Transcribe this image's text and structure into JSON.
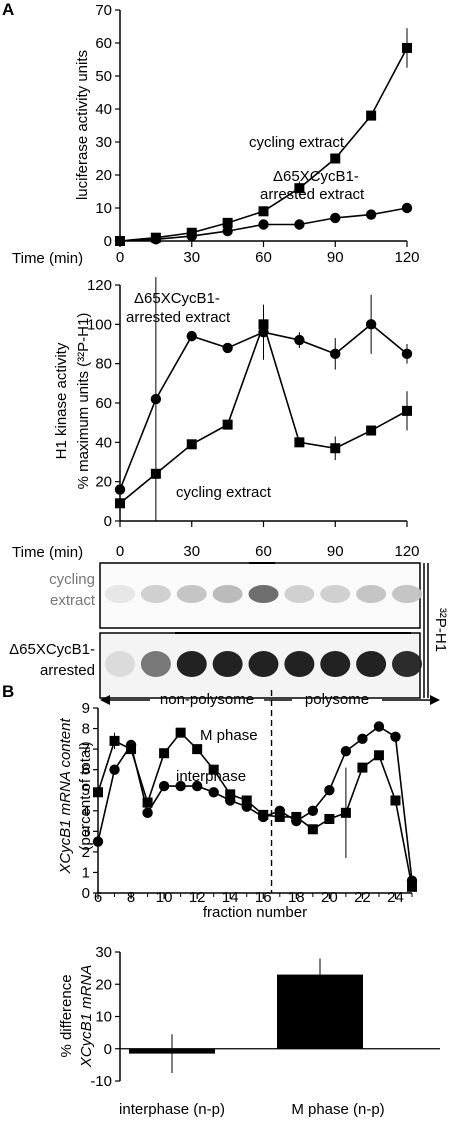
{
  "panels": {
    "A": "A",
    "B": "B"
  },
  "chart_data": [
    {
      "id": "luciferase",
      "type": "line",
      "ylabel": "luciferase activity units",
      "xlabel": "Time (min)",
      "xlim": [
        0,
        120
      ],
      "ylim": [
        0,
        70
      ],
      "xticks": [
        0,
        30,
        60,
        90,
        120
      ],
      "yticks": [
        0,
        10,
        20,
        30,
        40,
        50,
        60,
        70
      ],
      "series": [
        {
          "name": "cycling extract",
          "marker": "square",
          "x": [
            0,
            15,
            30,
            45,
            60,
            75,
            90,
            105,
            120
          ],
          "y": [
            0,
            1,
            2.5,
            5.5,
            9,
            16,
            25,
            38,
            58.5
          ],
          "err": [
            0,
            0,
            0,
            0,
            0,
            2,
            0,
            0,
            6
          ]
        },
        {
          "name": "Δ65XCycB1-\narrested extract",
          "marker": "circle",
          "x": [
            0,
            15,
            30,
            45,
            60,
            75,
            90,
            105,
            120
          ],
          "y": [
            0,
            0.5,
            1.5,
            3,
            5,
            5,
            7,
            8,
            10
          ],
          "err": [
            0,
            0,
            0,
            0,
            0,
            0,
            0,
            0,
            0
          ]
        }
      ],
      "annotations": [
        "cycling extract",
        "Δ65XCycB1-",
        "arrested extract"
      ]
    },
    {
      "id": "h1kinase",
      "type": "line",
      "ylabel_1": "H1 kinase activity",
      "ylabel_2": "% maximum units (³²P-H1)",
      "xlabel": "Time (min)",
      "xlim": [
        0,
        120
      ],
      "ylim": [
        0,
        120
      ],
      "xticks": [
        0,
        30,
        60,
        90,
        120
      ],
      "yticks": [
        0,
        20,
        40,
        60,
        80,
        100,
        120
      ],
      "series": [
        {
          "name": "Δ65XCycB1-arrested extract",
          "marker": "circle",
          "x": [
            0,
            15,
            30,
            45,
            60,
            75,
            90,
            105,
            120
          ],
          "y": [
            16,
            62,
            94,
            88,
            96,
            92,
            85,
            100,
            85
          ],
          "err": [
            0,
            62,
            0,
            0,
            14,
            4,
            8,
            15,
            5
          ]
        },
        {
          "name": "cycling extract",
          "marker": "square",
          "x": [
            0,
            15,
            30,
            45,
            60,
            75,
            90,
            105,
            120
          ],
          "y": [
            9,
            24,
            39,
            49,
            100,
            40,
            37,
            46,
            56
          ],
          "err": [
            0,
            0,
            0,
            0,
            0,
            0,
            6,
            0,
            10
          ]
        }
      ],
      "annotations": [
        "Δ65XCycB1-",
        "arrested extract",
        "cycling extract"
      ]
    },
    {
      "id": "polysome",
      "type": "line",
      "ylabel_1": "XCycB1 mRNA content",
      "ylabel_2": "(percent of total)",
      "xlabel": "fraction number",
      "xlim": [
        6,
        25
      ],
      "ylim": [
        0,
        9
      ],
      "xticks": [
        6,
        8,
        10,
        12,
        14,
        16,
        18,
        20,
        22,
        24
      ],
      "yticks": [
        0,
        1,
        2,
        3,
        4,
        5,
        6,
        7,
        8,
        9
      ],
      "divider_x": 16.5,
      "regions": [
        "non-polysome",
        "polysome"
      ],
      "series": [
        {
          "name": "M phase",
          "marker": "square",
          "x": [
            6,
            7,
            8,
            9,
            10,
            11,
            12,
            13,
            14,
            15,
            16,
            17,
            18,
            19,
            20,
            21,
            22,
            23,
            24,
            25
          ],
          "y": [
            4.9,
            7.4,
            7.0,
            4.4,
            6.8,
            7.8,
            7.0,
            6.0,
            4.8,
            4.5,
            3.8,
            3.7,
            3.7,
            3.1,
            3.6,
            3.9,
            6.1,
            6.7,
            4.5,
            0.3
          ],
          "err": [
            0,
            0.4,
            0,
            0,
            0,
            0,
            0,
            0,
            0,
            0,
            0,
            0,
            0,
            0,
            0,
            2.2,
            0,
            0,
            0,
            0
          ]
        },
        {
          "name": "interphase",
          "marker": "circle",
          "x": [
            6,
            7,
            8,
            9,
            10,
            11,
            12,
            13,
            14,
            15,
            16,
            17,
            18,
            19,
            20,
            21,
            22,
            23,
            24,
            25
          ],
          "y": [
            2.5,
            6.0,
            7.2,
            3.9,
            5.2,
            5.2,
            5.2,
            4.9,
            4.5,
            4.2,
            3.7,
            4.0,
            3.5,
            4.0,
            5.0,
            6.9,
            7.5,
            8.1,
            7.6,
            0.6
          ],
          "err": [
            0,
            0,
            0,
            0,
            0,
            0,
            0,
            0,
            0,
            0,
            0,
            0,
            0,
            0,
            0,
            0,
            0,
            0,
            0,
            0
          ]
        }
      ]
    },
    {
      "id": "difference",
      "type": "bar",
      "ylabel_1": "% difference",
      "ylabel_2": "XCycB1 mRNA",
      "categories": [
        "interphase (n-p)",
        "M phase (n-p)"
      ],
      "values": [
        -1.5,
        23
      ],
      "err": [
        6,
        5
      ],
      "ylim": [
        -10,
        30
      ],
      "yticks": [
        -10,
        0,
        10,
        20,
        30
      ]
    }
  ],
  "gel": {
    "time_labels": [
      "0",
      "30",
      "60",
      "90",
      "120"
    ],
    "row1_label_1": "cycling",
    "row1_label_2": "extract",
    "row2_label_1": "Δ65XCycB1-",
    "row2_label_2": "arrested",
    "side_label": "³²P-H1",
    "row1_intensity": [
      0.05,
      0.15,
      0.2,
      0.25,
      0.6,
      0.15,
      0.15,
      0.2,
      0.2
    ],
    "row2_intensity": [
      0.1,
      0.55,
      0.95,
      0.95,
      0.95,
      0.95,
      0.95,
      0.95,
      0.9
    ]
  },
  "colors": {
    "ink": "#000000",
    "grey_label": "#777777"
  }
}
